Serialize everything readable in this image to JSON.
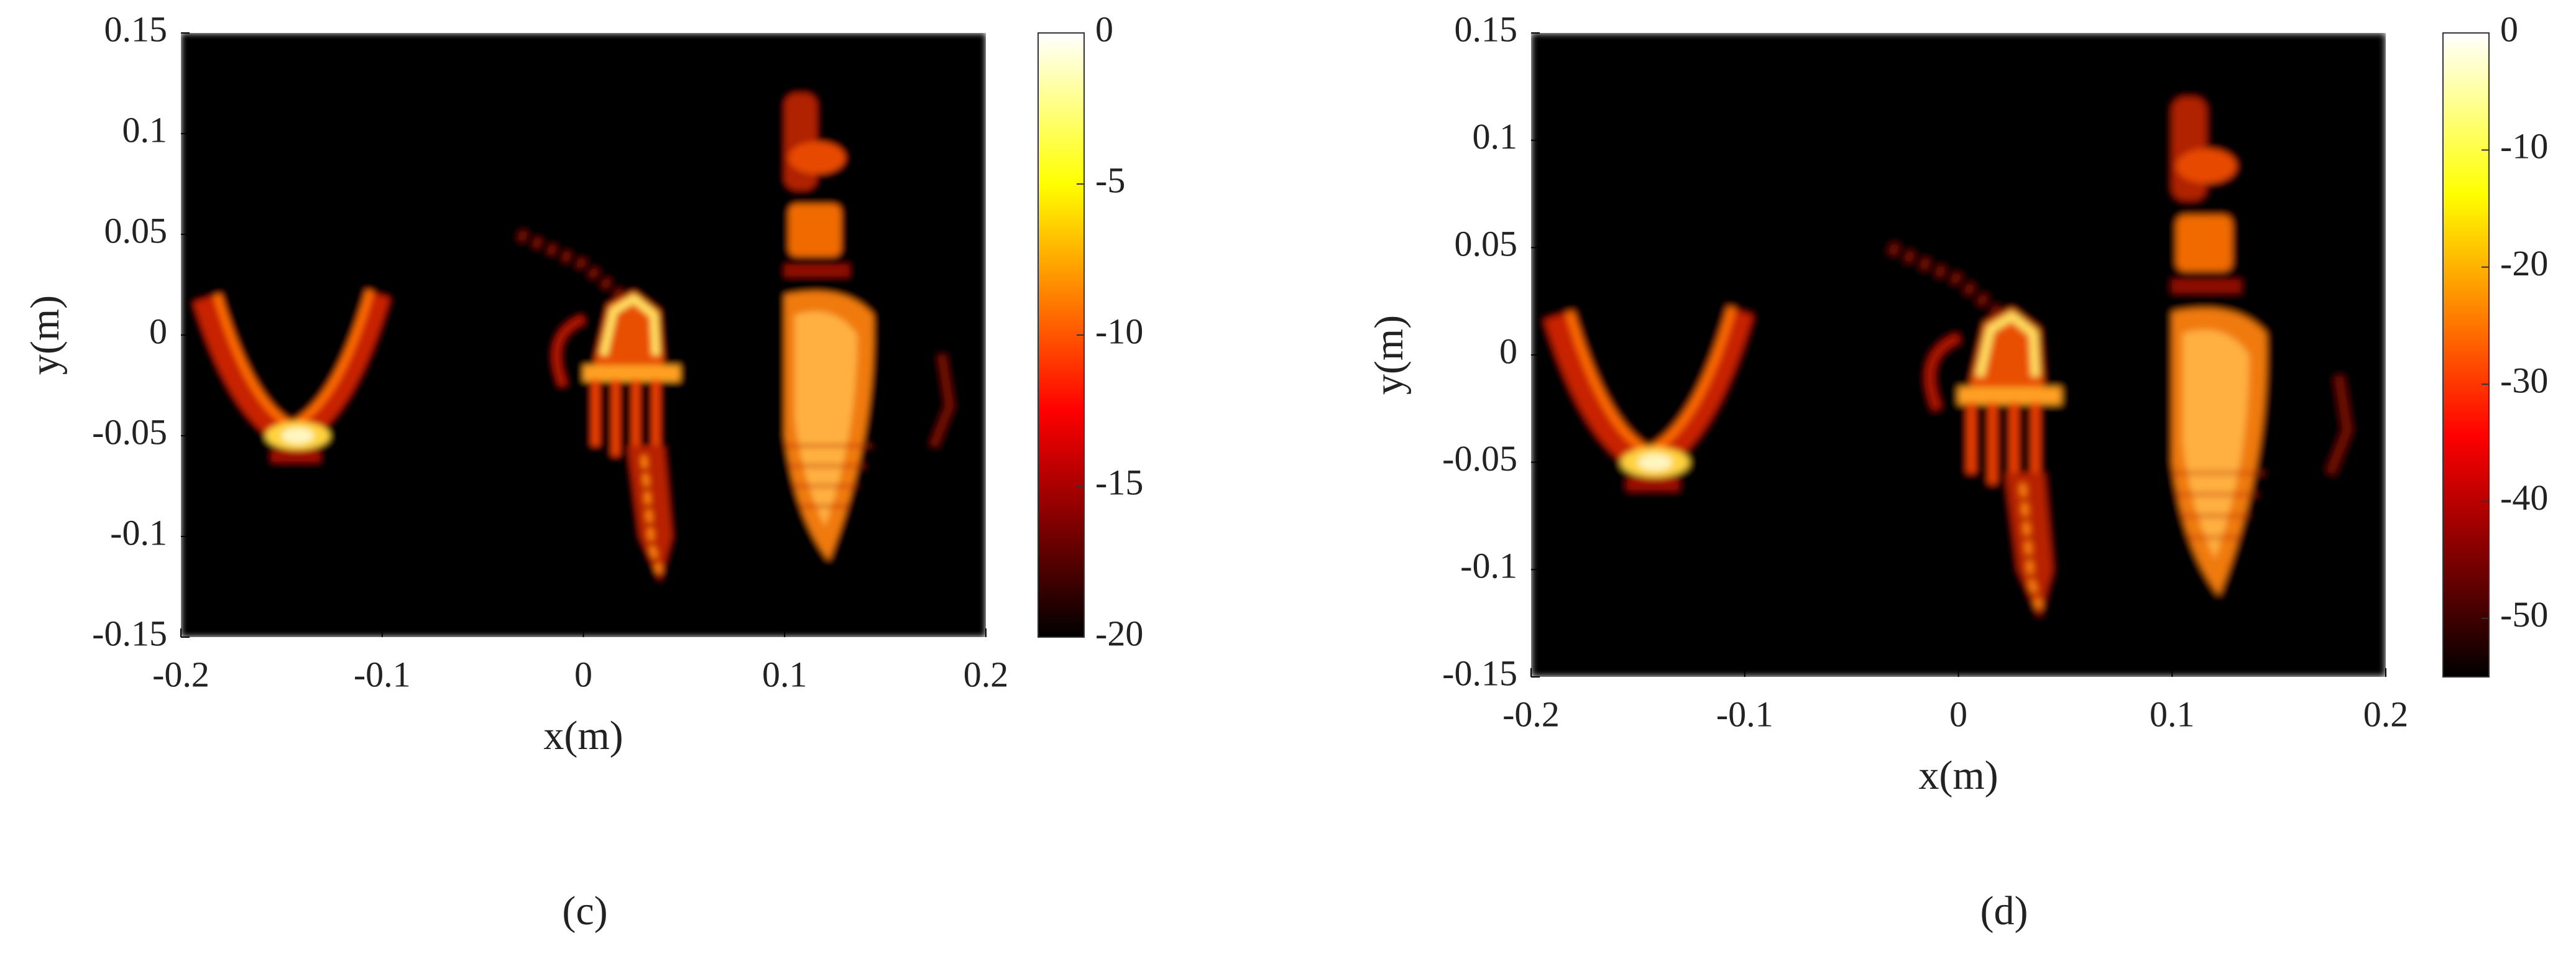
{
  "chart_data": [
    {
      "type": "heatmap",
      "caption": "(c)",
      "xlabel": "x(m)",
      "ylabel": "y(m)",
      "xlim": [
        -0.2,
        0.2
      ],
      "xticks": [
        -0.2,
        -0.1,
        0,
        0.1,
        0.2
      ],
      "ylim": [
        -0.15,
        0.15
      ],
      "yticks": [
        -0.15,
        -0.1,
        -0.05,
        0,
        0.05,
        0.1,
        0.15
      ],
      "colormap": "hot",
      "colorbar": {
        "lim": [
          -20,
          0
        ],
        "ticks": [
          -20,
          -15,
          -10,
          -5,
          0
        ]
      }
    },
    {
      "type": "heatmap",
      "caption": "(d)",
      "xlabel": "x(m)",
      "ylabel": "y(m)",
      "xlim": [
        -0.2,
        0.2
      ],
      "xticks": [
        -0.2,
        -0.1,
        0,
        0.1,
        0.2
      ],
      "ylim": [
        -0.15,
        0.15
      ],
      "yticks": [
        -0.15,
        -0.1,
        -0.05,
        0,
        0.05,
        0.1,
        0.15
      ],
      "colormap": "hot",
      "colorbar": {
        "lim": [
          -55,
          0
        ],
        "ticks": [
          -50,
          -40,
          -30,
          -20,
          -10,
          0
        ]
      }
    }
  ]
}
